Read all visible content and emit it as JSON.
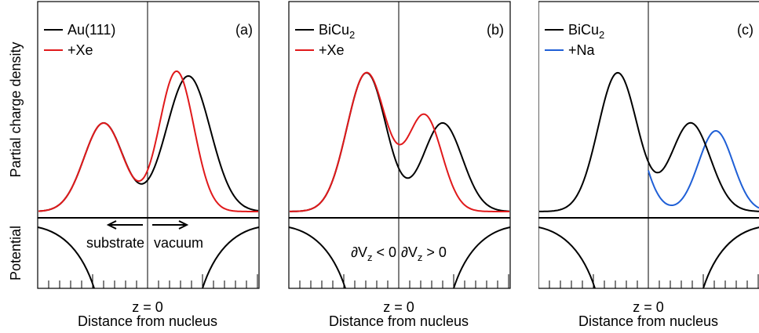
{
  "figure": {
    "y_labels": {
      "top": "Partial charge density",
      "bottom": "Potential"
    },
    "panels": [
      {
        "label": "(a)",
        "legend": [
          {
            "text": "Au(111)"
          },
          {
            "text": "+Xe"
          }
        ],
        "annotations": [
          "substrate",
          "vacuum"
        ],
        "zero_label": "z = 0",
        "x_label": "Distance from nucleus"
      },
      {
        "label": "(b)",
        "legend": [
          {
            "text": "BiCu",
            "sub": "2"
          },
          {
            "text": "+Xe"
          }
        ],
        "annotations": [
          {
            "text": "∂V",
            "sub": "z",
            "rest": " < 0"
          },
          {
            "text": "∂V",
            "sub": "z",
            "rest": " > 0"
          }
        ],
        "zero_label": "z = 0",
        "x_label": "Distance from nucleus"
      },
      {
        "label": "(c)",
        "legend": [
          {
            "text": "BiCu",
            "sub": "2"
          },
          {
            "text": "+Na"
          }
        ],
        "zero_label": "z = 0",
        "x_label": "Distance from nucleus"
      }
    ]
  }
}
